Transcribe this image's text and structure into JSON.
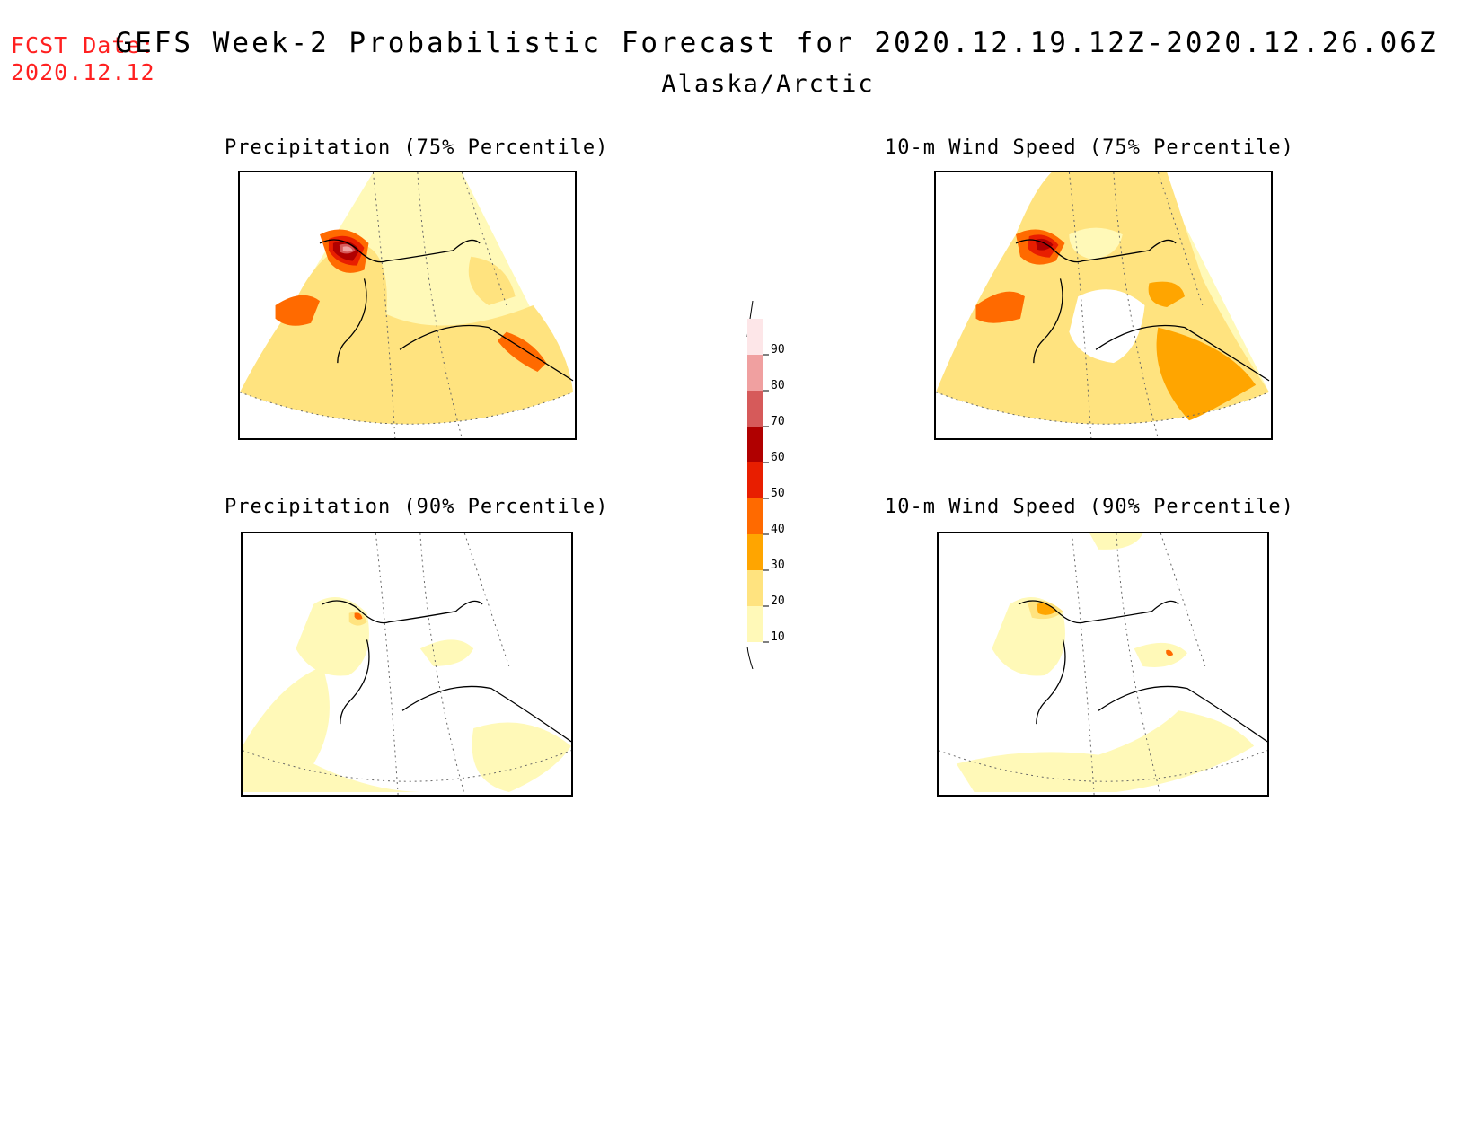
{
  "header": {
    "fcst_label": "FCST Date:",
    "fcst_date": "2020.12.12",
    "title": "GEFS Week-2 Probabilistic Forecast for 2020.12.19.12Z-2020.12.26.06Z",
    "subtitle": "Alaska/Arctic"
  },
  "panels": [
    {
      "id": "precip-75",
      "title": "Precipitation (75% Percentile)"
    },
    {
      "id": "wind-75",
      "title": "10-m Wind Speed (75% Percentile)"
    },
    {
      "id": "precip-90",
      "title": "Precipitation (90% Percentile)"
    },
    {
      "id": "wind-90",
      "title": "10-m Wind Speed (90% Percentile)"
    }
  ],
  "colorbar": {
    "ticks": [
      "90",
      "80",
      "70",
      "60",
      "50",
      "40",
      "30",
      "20",
      "10"
    ],
    "colors": {
      "10": "#fff9b8",
      "20": "#ffe37f",
      "30": "#ffa500",
      "40": "#ff6a00",
      "50": "#e81e00",
      "60": "#b00000",
      "70": "#d65a5a",
      "80": "#f0a0a0",
      "90": "#fde6e8"
    }
  }
}
